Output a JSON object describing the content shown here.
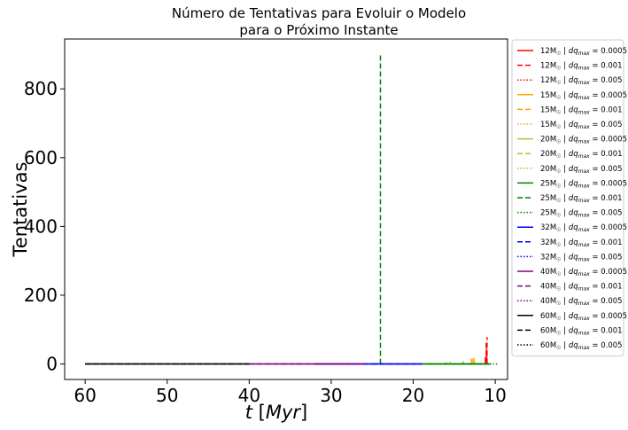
{
  "chart_data": {
    "type": "line",
    "title_line1": "Número de Tentativas para Evoluir o Modelo",
    "title_line2": "para o Próximo Instante",
    "xlabel": "t [Myr]",
    "ylabel": "Tentativas",
    "xlim": [
      62.5,
      8.5
    ],
    "ylim": [
      -45,
      945
    ],
    "xticks": [
      60,
      50,
      40,
      30,
      20,
      10
    ],
    "yticks": [
      0,
      200,
      400,
      600,
      800
    ],
    "grid": false,
    "legend_position": "outside-right",
    "series": [
      {
        "name": "12M☉ | dq_max = 0.0005",
        "mass": "12",
        "dq": "0.0005",
        "color": "#ff0000",
        "style": "solid",
        "x": [
          12.1,
          11.0
        ],
        "y": [
          0,
          0
        ],
        "spikes": [
          [
            11.2,
            20
          ],
          [
            11.05,
            45
          ]
        ]
      },
      {
        "name": "12M☉ | dq_max = 0.001",
        "mass": "12",
        "dq": "0.001",
        "color": "#ff0000",
        "style": "dashed",
        "x": [
          12.1,
          11.0
        ],
        "y": [
          0,
          0
        ],
        "spikes": [
          [
            11.1,
            65
          ],
          [
            11.0,
            78
          ]
        ]
      },
      {
        "name": "12M☉ | dq_max = 0.005",
        "mass": "12",
        "dq": "0.005",
        "color": "#ff0000",
        "style": "dotted",
        "x": [
          12.1,
          11.0
        ],
        "y": [
          0,
          0
        ],
        "spikes": [
          [
            11.05,
            30
          ]
        ]
      },
      {
        "name": "15M☉ | dq_max = 0.0005",
        "mass": "15",
        "dq": "0.0005",
        "color": "#ffa500",
        "style": "solid",
        "x": [
          15.0,
          12.0
        ],
        "y": [
          0,
          0
        ],
        "spikes": [
          [
            12.9,
            15
          ],
          [
            12.6,
            18
          ]
        ]
      },
      {
        "name": "15M☉ | dq_max = 0.001",
        "mass": "15",
        "dq": "0.001",
        "color": "#ffa500",
        "style": "dashed",
        "x": [
          15.0,
          12.0
        ],
        "y": [
          0,
          0
        ],
        "spikes": [
          [
            12.7,
            22
          ],
          [
            13.9,
            8
          ]
        ]
      },
      {
        "name": "15M☉ | dq_max = 0.005",
        "mass": "15",
        "dq": "0.005",
        "color": "#ffa500",
        "style": "dotted",
        "x": [
          15.0,
          12.0
        ],
        "y": [
          0,
          0
        ],
        "spikes": [
          [
            12.5,
            10
          ]
        ]
      },
      {
        "name": "20M☉ | dq_max = 0.0005",
        "mass": "20",
        "dq": "0.0005",
        "color": "#9acd32",
        "style": "solid",
        "x": [
          18.5,
          10.5
        ],
        "y": [
          0,
          0
        ],
        "spikes": [
          [
            16.0,
            5
          ]
        ]
      },
      {
        "name": "20M☉ | dq_max = 0.001",
        "mass": "20",
        "dq": "0.001",
        "color": "#9acd32",
        "style": "dashed",
        "x": [
          18.5,
          10.5
        ],
        "y": [
          0,
          0
        ],
        "spikes": [
          [
            15.5,
            6
          ]
        ]
      },
      {
        "name": "20M☉ | dq_max = 0.005",
        "mass": "20",
        "dq": "0.005",
        "color": "#9acd32",
        "style": "dotted",
        "x": [
          18.5,
          10.5
        ],
        "y": [
          0,
          0
        ],
        "spikes": []
      },
      {
        "name": "25M☉ | dq_max = 0.0005",
        "mass": "25",
        "dq": "0.0005",
        "color": "#008000",
        "style": "solid",
        "x": [
          19.0,
          10.6
        ],
        "y": [
          0,
          0
        ],
        "spikes": []
      },
      {
        "name": "25M☉ | dq_max = 0.001",
        "mass": "25",
        "dq": "0.001",
        "color": "#008000",
        "style": "dashed",
        "x": [
          25.0,
          10.6
        ],
        "y": [
          0,
          0
        ],
        "spikes": [
          [
            24.0,
            900
          ]
        ]
      },
      {
        "name": "25M☉ | dq_max = 0.005",
        "mass": "25",
        "dq": "0.005",
        "color": "#008000",
        "style": "dotted",
        "x": [
          19.0,
          9.7
        ],
        "y": [
          0,
          0
        ],
        "spikes": []
      },
      {
        "name": "32M☉ | dq_max = 0.0005",
        "mass": "32",
        "dq": "0.0005",
        "color": "#0000ff",
        "style": "solid",
        "x": [
          32.0,
          19.0
        ],
        "y": [
          0,
          0
        ],
        "spikes": []
      },
      {
        "name": "32M☉ | dq_max = 0.001",
        "mass": "32",
        "dq": "0.001",
        "color": "#0000ff",
        "style": "dashed",
        "x": [
          32.0,
          19.0
        ],
        "y": [
          0,
          0
        ],
        "spikes": []
      },
      {
        "name": "32M☉ | dq_max = 0.005",
        "mass": "32",
        "dq": "0.005",
        "color": "#0000ff",
        "style": "dotted",
        "x": [
          32.0,
          19.0
        ],
        "y": [
          0,
          0
        ],
        "spikes": []
      },
      {
        "name": "40M☉ | dq_max = 0.0005",
        "mass": "40",
        "dq": "0.0005",
        "color": "#800080",
        "style": "solid",
        "x": [
          40.0,
          26.0
        ],
        "y": [
          0,
          0
        ],
        "spikes": []
      },
      {
        "name": "40M☉ | dq_max = 0.001",
        "mass": "40",
        "dq": "0.001",
        "color": "#800080",
        "style": "dashed",
        "x": [
          40.0,
          26.0
        ],
        "y": [
          0,
          0
        ],
        "spikes": []
      },
      {
        "name": "40M☉ | dq_max = 0.005",
        "mass": "40",
        "dq": "0.005",
        "color": "#800080",
        "style": "dotted",
        "x": [
          40.0,
          26.0
        ],
        "y": [
          0,
          0
        ],
        "spikes": []
      },
      {
        "name": "60M☉ | dq_max = 0.0005",
        "mass": "60",
        "dq": "0.0005",
        "color": "#000000",
        "style": "solid",
        "x": [
          60.0,
          40.0
        ],
        "y": [
          0,
          0
        ],
        "spikes": []
      },
      {
        "name": "60M☉ | dq_max = 0.001",
        "mass": "60",
        "dq": "0.001",
        "color": "#000000",
        "style": "dashed",
        "x": [
          60.0,
          40.0
        ],
        "y": [
          0,
          0
        ],
        "spikes": []
      },
      {
        "name": "60M☉ | dq_max = 0.005",
        "mass": "60",
        "dq": "0.005",
        "color": "#000000",
        "style": "dotted",
        "x": [
          60.0,
          40.0
        ],
        "y": [
          0,
          0
        ],
        "spikes": []
      }
    ]
  }
}
